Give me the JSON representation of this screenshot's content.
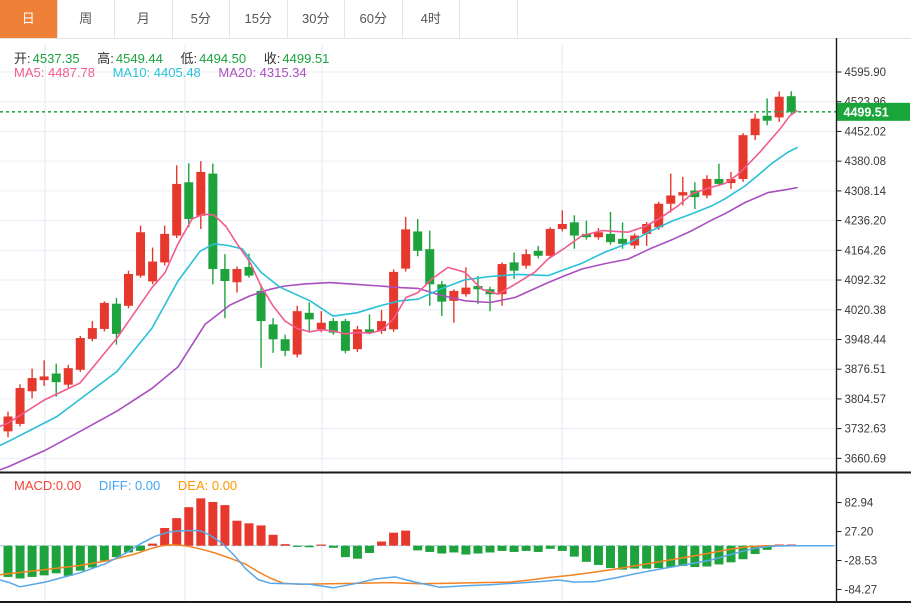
{
  "toolbar": {
    "tabs": [
      {
        "label": "日",
        "active": true
      },
      {
        "label": "周",
        "active": false
      },
      {
        "label": "月",
        "active": false
      },
      {
        "label": "5分",
        "active": false
      },
      {
        "label": "15分",
        "active": false
      },
      {
        "label": "30分",
        "active": false
      },
      {
        "label": "60分",
        "active": false
      },
      {
        "label": "4时",
        "active": false
      }
    ],
    "active_tab_color": "#ef8038"
  },
  "quote": {
    "open_label": "开:",
    "open": "4537.35",
    "high_label": "高:",
    "high": "4549.44",
    "low_label": "低:",
    "low": "4494.50",
    "close_label": "收:",
    "close": "4499.51",
    "value_color": "#19a33c"
  },
  "ma_header": {
    "ma5_label": "MA5:",
    "ma5": "4487.78",
    "ma5_color": "#f25c8e",
    "ma10_label": "MA10:",
    "ma10": "4405.48",
    "ma10_color": "#29c0d8",
    "ma20_label": "MA20:",
    "ma20": "4315.34",
    "ma20_color": "#ab4fc0"
  },
  "macd_header": {
    "macd_label": "MACD:",
    "macd": "0.00",
    "macd_color": "#f44336",
    "diff_label": "DIFF:",
    "diff": "0.00",
    "diff_color": "#42a5f5",
    "dea_label": "DEA:",
    "dea": "0.00",
    "dea_color": "#ff9800"
  },
  "colors": {
    "up_candle": "#e6382d",
    "down_candle": "#1ea33c",
    "grid": "#e9eef4",
    "vgrid": "#dfe9f2",
    "axis_text": "#3a3a3a",
    "axis_line": "#1a1a1a",
    "price_line": "#2aa84a",
    "price_tag_bg": "#19a53a",
    "price_tag_text": "#ffffff",
    "diff_line": "#58a7e8",
    "dea_line": "#f58220",
    "zero_dash": "#a8d0e8"
  },
  "chart_data": [
    {
      "type": "candlestick",
      "title": "",
      "ylabel": "price",
      "y_ticks": [
        4595.9,
        4523.96,
        4452.02,
        4380.08,
        4308.14,
        4236.2,
        4164.26,
        4092.32,
        4020.38,
        3948.44,
        3876.51,
        3804.57,
        3732.63,
        3660.69
      ],
      "ylim": [
        3630,
        4625
      ],
      "current_price": 4499.51,
      "current_price_label": "4499.51",
      "x_gridlines": [
        45,
        185,
        322,
        562
      ],
      "grid": true,
      "candles_ohlc": [
        [
          3726,
          3774,
          3712,
          3762
        ],
        [
          3744,
          3840,
          3738,
          3831
        ],
        [
          3823,
          3878,
          3806,
          3855
        ],
        [
          3850,
          3898,
          3836,
          3859
        ],
        [
          3866,
          3890,
          3810,
          3845
        ],
        [
          3839,
          3887,
          3832,
          3879
        ],
        [
          3875,
          3957,
          3870,
          3952
        ],
        [
          3950,
          3993,
          3944,
          3976
        ],
        [
          3974,
          4041,
          3968,
          4037
        ],
        [
          4035,
          4049,
          3936,
          3962
        ],
        [
          4030,
          4115,
          4024,
          4107
        ],
        [
          4103,
          4224,
          4098,
          4208
        ],
        [
          4089,
          4171,
          4082,
          4137
        ],
        [
          4135,
          4224,
          4128,
          4204
        ],
        [
          4200,
          4370,
          4194,
          4325
        ],
        [
          4329,
          4375,
          4220,
          4240
        ],
        [
          4248,
          4380,
          4216,
          4354
        ],
        [
          4350,
          4374,
          4082,
          4119
        ],
        [
          4119,
          4155,
          4000,
          4090
        ],
        [
          4087,
          4125,
          4062,
          4119
        ],
        [
          4124,
          4156,
          4098,
          4103
        ],
        [
          4066,
          4082,
          3880,
          3993
        ],
        [
          3985,
          4000,
          3916,
          3949
        ],
        [
          3949,
          3960,
          3908,
          3921
        ],
        [
          3912,
          4030,
          3905,
          4017
        ],
        [
          4013,
          4038,
          3965,
          3997
        ],
        [
          3973,
          4017,
          3966,
          3989
        ],
        [
          3993,
          4000,
          3960,
          3965
        ],
        [
          3993,
          3998,
          3915,
          3921
        ],
        [
          3925,
          3981,
          3918,
          3973
        ],
        [
          3973,
          4009,
          3961,
          3965
        ],
        [
          3969,
          4020,
          3962,
          3993
        ],
        [
          3973,
          4118,
          3967,
          4112
        ],
        [
          4120,
          4245,
          4113,
          4215
        ],
        [
          4210,
          4240,
          4150,
          4163
        ],
        [
          4167,
          4212,
          4030,
          4082
        ],
        [
          4082,
          4090,
          4005,
          4040
        ],
        [
          4042,
          4070,
          3989,
          4066
        ],
        [
          4058,
          4123,
          4052,
          4074
        ],
        [
          4078,
          4102,
          4034,
          4070
        ],
        [
          4070,
          4076,
          4017,
          4058
        ],
        [
          4058,
          4135,
          4030,
          4131
        ],
        [
          4135,
          4159,
          4095,
          4115
        ],
        [
          4127,
          4167,
          4120,
          4155
        ],
        [
          4163,
          4175,
          4145,
          4151
        ],
        [
          4151,
          4220,
          4145,
          4216
        ],
        [
          4216,
          4261,
          4210,
          4228
        ],
        [
          4232,
          4249,
          4168,
          4200
        ],
        [
          4204,
          4236,
          4190,
          4196
        ],
        [
          4196,
          4218,
          4190,
          4208
        ],
        [
          4204,
          4257,
          4178,
          4184
        ],
        [
          4192,
          4232,
          4168,
          4180
        ],
        [
          4176,
          4205,
          4168,
          4200
        ],
        [
          4204,
          4233,
          4175,
          4228
        ],
        [
          4220,
          4282,
          4214,
          4277
        ],
        [
          4277,
          4350,
          4256,
          4297
        ],
        [
          4297,
          4342,
          4273,
          4305
        ],
        [
          4309,
          4329,
          4264,
          4293
        ],
        [
          4297,
          4346,
          4290,
          4337
        ],
        [
          4337,
          4374,
          4320,
          4325
        ],
        [
          4327,
          4354,
          4313,
          4337
        ],
        [
          4337,
          4448,
          4330,
          4443
        ],
        [
          4443,
          4495,
          4431,
          4483
        ],
        [
          4490,
          4532,
          4467,
          4478
        ],
        [
          4486,
          4549,
          4475,
          4536
        ],
        [
          4537.35,
          4549.44,
          4494.5,
          4499.51
        ]
      ],
      "ma5_points": [
        [
          0,
          3738
        ],
        [
          8,
          3746
        ],
        [
          45,
          3803
        ],
        [
          80,
          3843
        ],
        [
          117,
          3952
        ],
        [
          152,
          4074
        ],
        [
          165,
          4110
        ],
        [
          178,
          4180
        ],
        [
          192,
          4240
        ],
        [
          203,
          4252
        ],
        [
          214,
          4250
        ],
        [
          226,
          4222
        ],
        [
          237,
          4180
        ],
        [
          250,
          4135
        ],
        [
          261,
          4078
        ],
        [
          273,
          4030
        ],
        [
          285,
          3993
        ],
        [
          297,
          3975
        ],
        [
          310,
          3967
        ],
        [
          322,
          3972
        ],
        [
          333,
          3969
        ],
        [
          345,
          3962
        ],
        [
          357,
          3965
        ],
        [
          370,
          3964
        ],
        [
          382,
          3971
        ],
        [
          394,
          4000
        ],
        [
          406,
          4050
        ],
        [
          418,
          4062
        ],
        [
          432,
          4095
        ],
        [
          448,
          4123
        ],
        [
          465,
          4111
        ],
        [
          482,
          4070
        ],
        [
          498,
          4058
        ],
        [
          518,
          4086
        ],
        [
          535,
          4112
        ],
        [
          548,
          4143
        ],
        [
          565,
          4170
        ],
        [
          582,
          4200
        ],
        [
          602,
          4212
        ],
        [
          628,
          4208
        ],
        [
          645,
          4222
        ],
        [
          660,
          4242
        ],
        [
          678,
          4272
        ],
        [
          692,
          4301
        ],
        [
          710,
          4316
        ],
        [
          725,
          4326
        ],
        [
          737,
          4346
        ],
        [
          748,
          4372
        ],
        [
          760,
          4402
        ],
        [
          770,
          4430
        ],
        [
          780,
          4458
        ],
        [
          790,
          4490
        ],
        [
          797,
          4502
        ]
      ],
      "ma10_points": [
        [
          0,
          3692
        ],
        [
          8,
          3701
        ],
        [
          57,
          3762
        ],
        [
          117,
          3871
        ],
        [
          152,
          3976
        ],
        [
          178,
          4090
        ],
        [
          200,
          4162
        ],
        [
          214,
          4180
        ],
        [
          228,
          4176
        ],
        [
          242,
          4168
        ],
        [
          261,
          4111
        ],
        [
          280,
          4075
        ],
        [
          310,
          4042
        ],
        [
          333,
          4005
        ],
        [
          357,
          4013
        ],
        [
          380,
          4030
        ],
        [
          400,
          4042
        ],
        [
          418,
          4046
        ],
        [
          440,
          4070
        ],
        [
          465,
          4093
        ],
        [
          490,
          4101
        ],
        [
          518,
          4106
        ],
        [
          548,
          4103
        ],
        [
          565,
          4118
        ],
        [
          582,
          4133
        ],
        [
          605,
          4160
        ],
        [
          628,
          4181
        ],
        [
          650,
          4210
        ],
        [
          672,
          4235
        ],
        [
          692,
          4253
        ],
        [
          712,
          4272
        ],
        [
          725,
          4289
        ],
        [
          745,
          4320
        ],
        [
          758,
          4346
        ],
        [
          772,
          4375
        ],
        [
          788,
          4402
        ],
        [
          797,
          4413
        ]
      ],
      "ma20_points": [
        [
          0,
          3633
        ],
        [
          8,
          3640
        ],
        [
          45,
          3680
        ],
        [
          80,
          3726
        ],
        [
          117,
          3775
        ],
        [
          152,
          3830
        ],
        [
          178,
          3882
        ],
        [
          205,
          3985
        ],
        [
          230,
          4032
        ],
        [
          250,
          4054
        ],
        [
          270,
          4070
        ],
        [
          285,
          4078
        ],
        [
          305,
          4083
        ],
        [
          330,
          4086
        ],
        [
          355,
          4082
        ],
        [
          380,
          4078
        ],
        [
          400,
          4074
        ],
        [
          418,
          4072
        ],
        [
          440,
          4056
        ],
        [
          465,
          4042
        ],
        [
          490,
          4038
        ],
        [
          515,
          4050
        ],
        [
          548,
          4086
        ],
        [
          565,
          4103
        ],
        [
          582,
          4119
        ],
        [
          605,
          4132
        ],
        [
          628,
          4143
        ],
        [
          650,
          4168
        ],
        [
          672,
          4190
        ],
        [
          692,
          4212
        ],
        [
          712,
          4238
        ],
        [
          725,
          4253
        ],
        [
          745,
          4280
        ],
        [
          768,
          4304
        ],
        [
          788,
          4312
        ],
        [
          797,
          4316
        ]
      ]
    },
    {
      "type": "bar",
      "title": "MACD",
      "y_ticks": [
        82.94,
        27.2,
        -28.53,
        -84.27
      ],
      "ylim": [
        -110,
        110
      ],
      "grid": true,
      "histogram": [
        -60,
        -63,
        -60,
        -57,
        -53,
        -58,
        -48,
        -42,
        -29,
        -22,
        -13,
        -10,
        4,
        34,
        53,
        74,
        91,
        84,
        78,
        48,
        43,
        39,
        21,
        3,
        -2,
        -3,
        2,
        -4,
        -22,
        -25,
        -14,
        8,
        25,
        29,
        -9,
        -12,
        -15,
        -13,
        -17,
        -15,
        -13,
        -10,
        -12,
        -10,
        -12,
        -6,
        -10,
        -21,
        -31,
        -37,
        -43,
        -46,
        -44,
        -44,
        -43,
        -41,
        -39,
        -41,
        -40,
        -36,
        -32,
        -26,
        -16,
        -8,
        2,
        2
      ],
      "diff_points": [
        [
          0,
          -66
        ],
        [
          8,
          -70
        ],
        [
          20,
          -79
        ],
        [
          45,
          -70
        ],
        [
          80,
          -52
        ],
        [
          105,
          -35
        ],
        [
          125,
          -15
        ],
        [
          140,
          3
        ],
        [
          155,
          18
        ],
        [
          170,
          27
        ],
        [
          185,
          29
        ],
        [
          200,
          29
        ],
        [
          210,
          20
        ],
        [
          222,
          5
        ],
        [
          234,
          -18
        ],
        [
          246,
          -45
        ],
        [
          258,
          -65
        ],
        [
          270,
          -72
        ],
        [
          290,
          -73
        ],
        [
          310,
          -74
        ],
        [
          333,
          -81
        ],
        [
          355,
          -73
        ],
        [
          375,
          -64
        ],
        [
          395,
          -60
        ],
        [
          415,
          -70
        ],
        [
          440,
          -80
        ],
        [
          465,
          -77
        ],
        [
          490,
          -75
        ],
        [
          515,
          -72
        ],
        [
          540,
          -69
        ],
        [
          558,
          -66
        ],
        [
          575,
          -70
        ],
        [
          595,
          -69
        ],
        [
          615,
          -62
        ],
        [
          640,
          -52
        ],
        [
          665,
          -43
        ],
        [
          690,
          -35
        ],
        [
          710,
          -28
        ],
        [
          725,
          -20
        ],
        [
          740,
          -12
        ],
        [
          755,
          -5
        ],
        [
          770,
          -1
        ],
        [
          790,
          0
        ],
        [
          833,
          0
        ]
      ],
      "dea_points": [
        [
          0,
          -56
        ],
        [
          8,
          -54
        ],
        [
          45,
          -46
        ],
        [
          80,
          -38
        ],
        [
          110,
          -28
        ],
        [
          135,
          -16
        ],
        [
          150,
          -6
        ],
        [
          162,
          0
        ],
        [
          172,
          2
        ],
        [
          185,
          0
        ],
        [
          200,
          -6
        ],
        [
          215,
          -14
        ],
        [
          230,
          -24
        ],
        [
          245,
          -35
        ],
        [
          258,
          -50
        ],
        [
          270,
          -62
        ],
        [
          283,
          -72
        ],
        [
          300,
          -74
        ],
        [
          330,
          -73
        ],
        [
          360,
          -72
        ],
        [
          390,
          -71
        ],
        [
          420,
          -73
        ],
        [
          450,
          -72
        ],
        [
          480,
          -71
        ],
        [
          510,
          -70
        ],
        [
          530,
          -66
        ],
        [
          550,
          -61
        ],
        [
          570,
          -57
        ],
        [
          590,
          -52
        ],
        [
          615,
          -45
        ],
        [
          640,
          -37
        ],
        [
          665,
          -29
        ],
        [
          690,
          -21
        ],
        [
          710,
          -14
        ],
        [
          730,
          -7
        ],
        [
          748,
          -2
        ],
        [
          765,
          0
        ],
        [
          833,
          0
        ]
      ]
    }
  ]
}
